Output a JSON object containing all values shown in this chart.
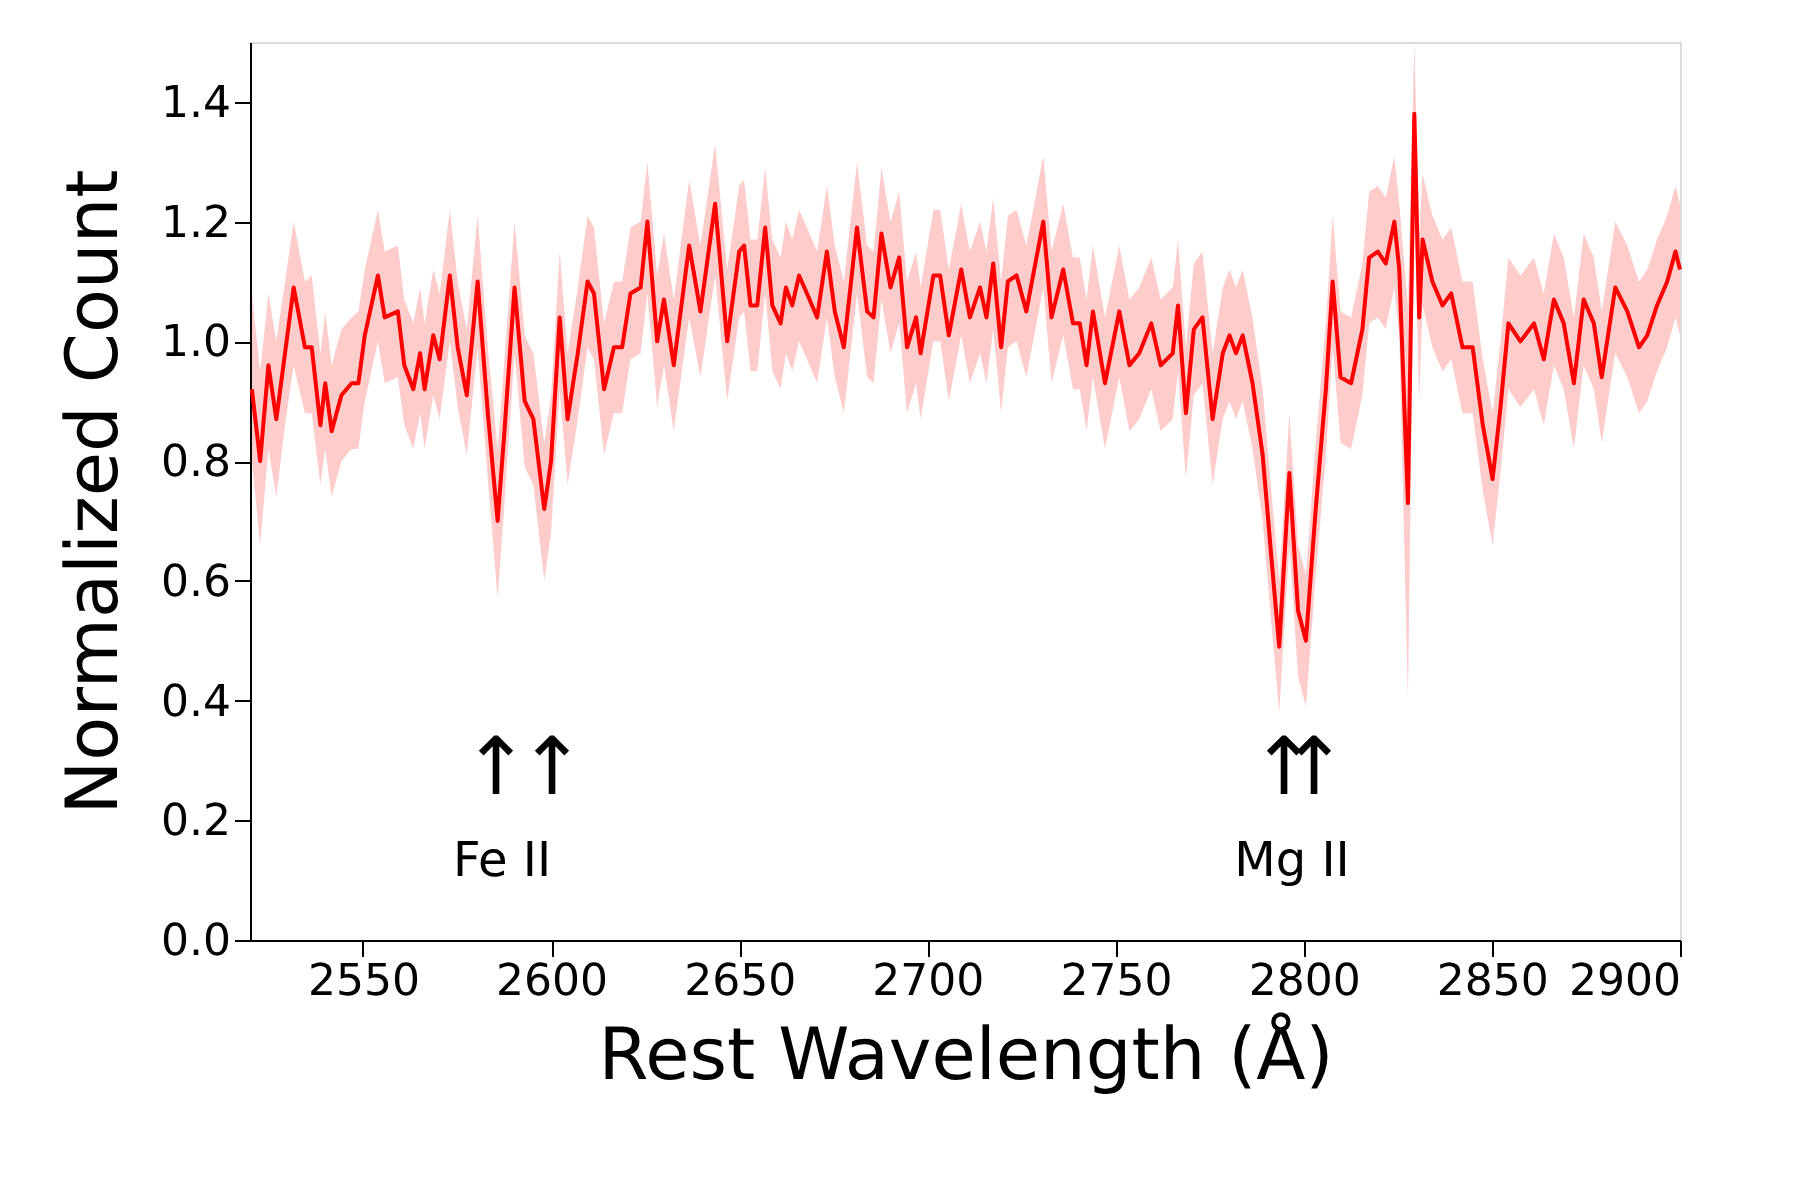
{
  "chart_data": {
    "type": "line",
    "xlabel": "Rest Wavelength (Å)",
    "ylabel": "Normalized Count",
    "xlim": [
      2520,
      2900
    ],
    "xticks": [
      2550,
      2600,
      2650,
      2700,
      2750,
      2800,
      2850,
      2900
    ],
    "ylim": [
      0,
      1.5
    ],
    "yticks": [
      {
        "value": 0,
        "label": "0.0"
      },
      0.2,
      0.4,
      0.6,
      0.8,
      {
        "value": 1,
        "label": "1.0"
      },
      1.2,
      1.4
    ],
    "grid": false,
    "marker": "none",
    "line_style": "solid",
    "annotations": [
      "Fe II",
      "↑",
      "↑",
      "Mg II",
      "↑",
      "↑"
    ],
    "series": [
      {
        "color": "#ff0000",
        "x": [
          2520.5,
          2522.7,
          2524.9,
          2527,
          2529.3,
          2531.6,
          2534.6,
          2536.4,
          2538.7,
          2540,
          2541.7,
          2544.3,
          2547,
          2548.8,
          2550.5,
          2554,
          2555.8,
          2559.3,
          2561,
          2563.4,
          2565.2,
          2566.4,
          2568.7,
          2570.4,
          2573.1,
          2575.2,
          2577.6,
          2580.5,
          2583.2,
          2585.8,
          2587.5,
          2590.3,
          2593,
          2595.3,
          2598.2,
          2600,
          2602.3,
          2604.4,
          2607.1,
          2609.7,
          2611.4,
          2614.1,
          2616.7,
          2618.9,
          2621.1,
          2623.8,
          2625.6,
          2628.2,
          2630,
          2632.6,
          2636.7,
          2639.7,
          2643.6,
          2646.8,
          2650,
          2651.3,
          2653,
          2654.8,
          2656.9,
          2658.8,
          2661,
          2662.4,
          2664.1,
          2665.9,
          2668,
          2670.7,
          2673.3,
          2675.4,
          2677.8,
          2681.3,
          2684,
          2685.7,
          2687.8,
          2690.2,
          2692.5,
          2694.6,
          2697,
          2698.2,
          2701.6,
          2703.4,
          2705.7,
          2709,
          2711.3,
          2714,
          2715.7,
          2717.5,
          2719.6,
          2721.4,
          2723.7,
          2726.3,
          2728.1,
          2730.8,
          2733,
          2736.1,
          2738.7,
          2740.5,
          2742.3,
          2744,
          2747.2,
          2751,
          2753.7,
          2756.3,
          2759.5,
          2762,
          2765.2,
          2766.6,
          2768.7,
          2770.8,
          2773.1,
          2775.8,
          2778.5,
          2780.3,
          2782,
          2783.8,
          2786.4,
          2789.1,
          2791.4,
          2793.5,
          2796.2,
          2798.5,
          2800.6,
          2803.2,
          2805.9,
          2807.7,
          2809.8,
          2812.6,
          2815.6,
          2817.4,
          2819.7,
          2821.8,
          2824.1,
          2825.4,
          2827.7,
          2829.4,
          2830.7,
          2831.6,
          2834.2,
          2836.9,
          2839.2,
          2842.2,
          2844.9,
          2847.6,
          2850.2,
          2852.3,
          2854.4,
          2857.6,
          2861.2,
          2863.8,
          2866.5,
          2869.1,
          2871.8,
          2874.4,
          2877.1,
          2879.2,
          2882.8,
          2886,
          2889.1,
          2891.3,
          2893.9,
          2896.6,
          2898.8,
          2900
        ],
        "values": [
          0.92,
          0.8,
          0.96,
          0.87,
          0.98,
          1.09,
          0.99,
          0.99,
          0.86,
          0.93,
          0.85,
          0.91,
          0.93,
          0.93,
          1.01,
          1.11,
          1.04,
          1.05,
          0.96,
          0.92,
          0.98,
          0.92,
          1.01,
          0.97,
          1.11,
          0.99,
          0.91,
          1.1,
          0.88,
          0.7,
          0.84,
          1.09,
          0.9,
          0.87,
          0.72,
          0.8,
          1.04,
          0.87,
          0.98,
          1.1,
          1.08,
          0.92,
          0.99,
          0.99,
          1.08,
          1.09,
          1.2,
          1.0,
          1.07,
          0.96,
          1.16,
          1.05,
          1.23,
          1.0,
          1.15,
          1.16,
          1.06,
          1.06,
          1.19,
          1.06,
          1.03,
          1.09,
          1.06,
          1.11,
          1.08,
          1.04,
          1.15,
          1.05,
          0.99,
          1.19,
          1.05,
          1.04,
          1.18,
          1.09,
          1.14,
          0.99,
          1.04,
          0.98,
          1.11,
          1.11,
          1.01,
          1.12,
          1.04,
          1.09,
          1.04,
          1.13,
          0.99,
          1.1,
          1.11,
          1.05,
          1.11,
          1.2,
          1.04,
          1.12,
          1.03,
          1.03,
          0.96,
          1.05,
          0.93,
          1.05,
          0.96,
          0.98,
          1.03,
          0.96,
          0.98,
          1.06,
          0.88,
          1.02,
          1.04,
          0.87,
          0.98,
          1.01,
          0.98,
          1.01,
          0.93,
          0.81,
          0.64,
          0.49,
          0.78,
          0.55,
          0.5,
          0.72,
          0.92,
          1.1,
          0.94,
          0.93,
          1.02,
          1.14,
          1.15,
          1.13,
          1.2,
          1.12,
          0.73,
          1.38,
          1.04,
          1.17,
          1.1,
          1.06,
          1.08,
          0.99,
          0.99,
          0.86,
          0.77,
          0.89,
          1.03,
          1.0,
          1.03,
          0.97,
          1.07,
          1.03,
          0.93,
          1.07,
          1.03,
          0.94,
          1.09,
          1.05,
          0.99,
          1.01,
          1.06,
          1.1,
          1.15,
          1.12
        ],
        "lower": [
          0.8,
          0.66,
          0.82,
          0.74,
          0.86,
          0.96,
          0.88,
          0.88,
          0.76,
          0.82,
          0.74,
          0.8,
          0.82,
          0.82,
          0.9,
          1.0,
          0.93,
          0.94,
          0.86,
          0.82,
          0.88,
          0.82,
          0.91,
          0.87,
          1.0,
          0.89,
          0.81,
          0.99,
          0.77,
          0.57,
          0.72,
          0.98,
          0.79,
          0.76,
          0.6,
          0.68,
          0.92,
          0.76,
          0.87,
          0.99,
          0.97,
          0.81,
          0.88,
          0.88,
          0.97,
          0.98,
          1.08,
          0.89,
          0.96,
          0.85,
          1.04,
          0.94,
          1.11,
          0.9,
          1.04,
          1.05,
          0.95,
          0.95,
          1.08,
          0.95,
          0.92,
          0.98,
          0.95,
          1.0,
          0.97,
          0.93,
          1.04,
          0.94,
          0.88,
          1.08,
          0.94,
          0.93,
          1.07,
          0.98,
          1.03,
          0.88,
          0.93,
          0.87,
          1.0,
          1.0,
          0.9,
          1.01,
          0.93,
          0.98,
          0.93,
          1.02,
          0.88,
          0.99,
          1.0,
          0.94,
          1.0,
          1.09,
          0.93,
          1.01,
          0.92,
          0.92,
          0.85,
          0.94,
          0.82,
          0.94,
          0.85,
          0.87,
          0.92,
          0.85,
          0.87,
          0.95,
          0.77,
          0.91,
          0.93,
          0.76,
          0.87,
          0.9,
          0.87,
          0.9,
          0.82,
          0.7,
          0.53,
          0.38,
          0.66,
          0.44,
          0.39,
          0.61,
          0.81,
          0.99,
          0.83,
          0.82,
          0.91,
          1.03,
          1.04,
          1.02,
          1.09,
          1.01,
          0.4,
          1.2,
          0.9,
          1.06,
          0.99,
          0.95,
          0.97,
          0.88,
          0.88,
          0.75,
          0.66,
          0.78,
          0.92,
          0.89,
          0.92,
          0.86,
          0.96,
          0.92,
          0.82,
          0.96,
          0.92,
          0.83,
          0.98,
          0.94,
          0.88,
          0.9,
          0.95,
          0.99,
          1.04,
          1.01
        ],
        "upper": [
          1.08,
          0.95,
          1.08,
          1.0,
          1.1,
          1.2,
          1.1,
          1.11,
          0.98,
          1.05,
          0.96,
          1.02,
          1.04,
          1.05,
          1.12,
          1.22,
          1.15,
          1.16,
          1.07,
          1.03,
          1.09,
          1.03,
          1.12,
          1.08,
          1.22,
          1.1,
          1.02,
          1.21,
          0.99,
          0.82,
          0.96,
          1.2,
          1.01,
          0.98,
          0.83,
          0.91,
          1.15,
          0.98,
          1.09,
          1.21,
          1.19,
          1.03,
          1.1,
          1.1,
          1.19,
          1.2,
          1.3,
          1.11,
          1.18,
          1.07,
          1.27,
          1.16,
          1.33,
          1.12,
          1.26,
          1.27,
          1.17,
          1.17,
          1.29,
          1.17,
          1.14,
          1.2,
          1.17,
          1.22,
          1.19,
          1.15,
          1.26,
          1.16,
          1.1,
          1.3,
          1.16,
          1.15,
          1.29,
          1.2,
          1.25,
          1.1,
          1.15,
          1.09,
          1.22,
          1.22,
          1.12,
          1.23,
          1.15,
          1.2,
          1.15,
          1.24,
          1.1,
          1.21,
          1.22,
          1.16,
          1.22,
          1.31,
          1.15,
          1.23,
          1.14,
          1.14,
          1.07,
          1.16,
          1.04,
          1.16,
          1.07,
          1.09,
          1.14,
          1.07,
          1.09,
          1.17,
          0.99,
          1.13,
          1.15,
          0.98,
          1.09,
          1.12,
          1.09,
          1.12,
          1.04,
          0.92,
          0.75,
          0.6,
          0.88,
          0.66,
          0.61,
          0.83,
          1.03,
          1.21,
          1.05,
          1.04,
          1.13,
          1.25,
          1.26,
          1.24,
          1.31,
          1.23,
          1.06,
          1.5,
          1.18,
          1.28,
          1.21,
          1.17,
          1.19,
          1.1,
          1.1,
          0.97,
          0.88,
          1.0,
          1.14,
          1.11,
          1.14,
          1.08,
          1.18,
          1.14,
          1.04,
          1.18,
          1.14,
          1.05,
          1.2,
          1.16,
          1.1,
          1.12,
          1.17,
          1.21,
          1.26,
          1.23
        ]
      }
    ]
  }
}
